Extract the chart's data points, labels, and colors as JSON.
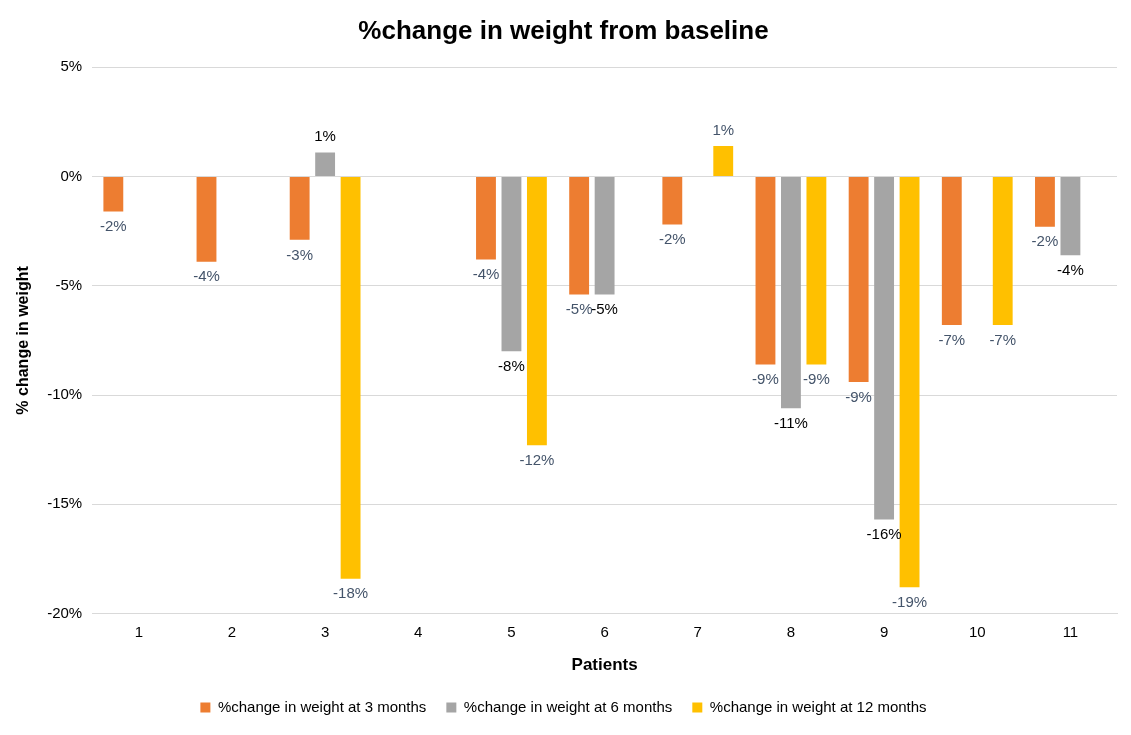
{
  "chart_data": {
    "type": "bar",
    "title": "%change in weight from baseline",
    "xlabel": "Patients",
    "ylabel": "% change in weight",
    "categories": [
      "1",
      "2",
      "3",
      "4",
      "5",
      "6",
      "7",
      "8",
      "9",
      "10",
      "11"
    ],
    "series": [
      {
        "name": "%change in weight at 3 months",
        "color": "#ed7d31",
        "values": [
          -1.6,
          -3.9,
          -2.9,
          null,
          -3.8,
          -5.4,
          -2.2,
          -8.6,
          -9.4,
          -6.8,
          -2.3
        ],
        "value_labels": [
          "-2%",
          "-4%",
          "-3%",
          null,
          "-4%",
          "-5%",
          "-2%",
          "-9%",
          "-9%",
          "-7%",
          "-2%"
        ]
      },
      {
        "name": "%change in weight at 6 months",
        "color": "#a5a5a5",
        "values": [
          null,
          null,
          1.1,
          null,
          -8.0,
          -5.4,
          null,
          -10.6,
          -15.7,
          null,
          -3.6
        ],
        "value_labels": [
          null,
          null,
          "1%",
          null,
          "-8%",
          "-5%",
          null,
          "-11%",
          "-16%",
          null,
          "-4%"
        ]
      },
      {
        "name": "%change in weight at 12 months",
        "color": "#ffc000",
        "values": [
          null,
          null,
          -18.4,
          null,
          -12.3,
          null,
          1.4,
          -8.6,
          -18.8,
          -6.8,
          null
        ],
        "value_labels": [
          null,
          null,
          "-18%",
          null,
          "-12%",
          null,
          "1%",
          "-9%",
          "-19%",
          "-7%",
          null
        ]
      }
    ],
    "ylim": [
      -20,
      5
    ],
    "yticks": [
      {
        "value": -20,
        "label": "-20%"
      },
      {
        "value": -15,
        "label": "-15%"
      },
      {
        "value": -10,
        "label": "-10%"
      },
      {
        "value": -5,
        "label": "-5%"
      },
      {
        "value": 0,
        "label": "0%"
      },
      {
        "value": 5,
        "label": "5%"
      }
    ],
    "grid": "y",
    "legend": "bottom"
  }
}
